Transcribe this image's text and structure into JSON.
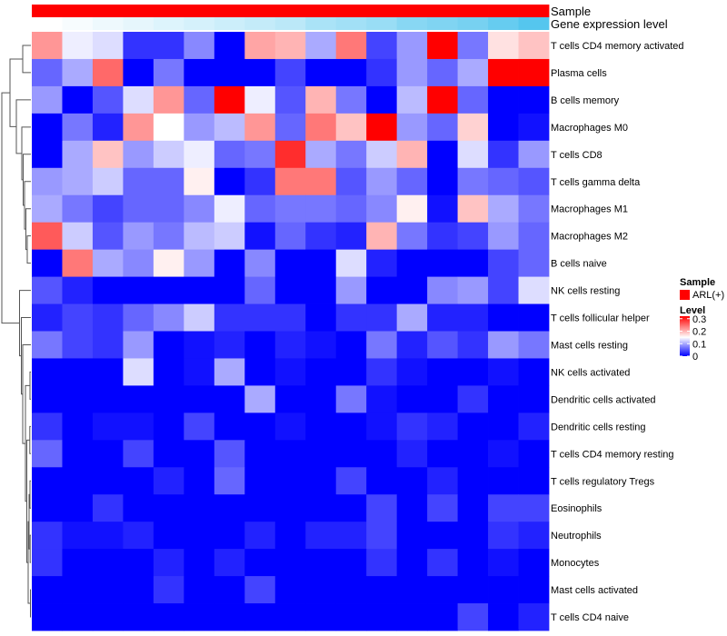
{
  "chart_data": {
    "type": "heatmap",
    "annotations": [
      {
        "name": "Sample",
        "legend_title": "Sample",
        "levels": [
          "ARL(+)"
        ],
        "colors": [
          "#ff0000"
        ]
      },
      {
        "name": "Gene expression level",
        "shown_in_legend": false,
        "gradient": [
          "#ffffff",
          "#55c6ee"
        ]
      }
    ],
    "gene_expression_level": [
      0.0,
      0.05,
      0.1,
      0.15,
      0.2,
      0.25,
      0.3,
      0.35,
      0.4,
      0.5,
      0.55,
      0.6,
      0.7,
      0.75,
      0.8,
      0.9,
      1.0
    ],
    "rows": [
      "T cells CD4 memory activated",
      "Plasma cells",
      "B cells memory",
      "Macrophages M0",
      "T cells CD8",
      "T cells gamma delta",
      "Macrophages M1",
      "Macrophages M2",
      "B cells naive",
      "NK cells resting",
      "T cells follicular helper",
      "Mast cells resting",
      "NK cells activated",
      "Dendritic cells activated",
      "Dendritic cells resting",
      "T cells CD4 memory resting",
      "T cells regulatory  Tregs",
      "Eosinophils",
      "Neutrophils",
      "Monocytes",
      "Mast cells activated",
      "T cells CD4 naive"
    ],
    "values": [
      [
        0.22,
        0.14,
        0.13,
        0.03,
        0.03,
        0.08,
        0.0,
        0.21,
        0.2,
        0.1,
        0.24,
        0.04,
        0.09,
        0.32,
        0.07,
        0.17,
        0.19
      ],
      [
        0.06,
        0.1,
        0.25,
        0.0,
        0.07,
        0.0,
        0.0,
        0.0,
        0.04,
        0.0,
        0.0,
        0.03,
        0.09,
        0.06,
        0.1,
        0.32,
        0.33
      ],
      [
        0.09,
        0.0,
        0.05,
        0.13,
        0.22,
        0.06,
        0.32,
        0.14,
        0.05,
        0.2,
        0.07,
        0.0,
        0.11,
        0.32,
        0.06,
        0.0,
        0.0
      ],
      [
        0.0,
        0.07,
        0.02,
        0.22,
        0.15,
        0.09,
        0.11,
        0.22,
        0.06,
        0.24,
        0.19,
        0.32,
        0.09,
        0.06,
        0.18,
        0.0,
        0.01
      ],
      [
        0.0,
        0.1,
        0.19,
        0.09,
        0.12,
        0.14,
        0.06,
        0.07,
        0.29,
        0.1,
        0.07,
        0.12,
        0.2,
        0.0,
        0.13,
        0.03,
        0.09
      ],
      [
        0.09,
        0.1,
        0.12,
        0.06,
        0.06,
        0.16,
        0.0,
        0.03,
        0.24,
        0.24,
        0.05,
        0.09,
        0.06,
        0.0,
        0.07,
        0.06,
        0.05
      ],
      [
        0.1,
        0.07,
        0.04,
        0.06,
        0.06,
        0.08,
        0.14,
        0.06,
        0.07,
        0.07,
        0.06,
        0.08,
        0.16,
        0.01,
        0.19,
        0.1,
        0.07
      ],
      [
        0.26,
        0.12,
        0.05,
        0.09,
        0.07,
        0.11,
        0.12,
        0.01,
        0.06,
        0.03,
        0.02,
        0.2,
        0.07,
        0.03,
        0.04,
        0.09,
        0.06
      ],
      [
        0.0,
        0.24,
        0.1,
        0.08,
        0.16,
        0.09,
        0.0,
        0.08,
        0.0,
        0.0,
        0.13,
        0.02,
        0.0,
        0.0,
        0.0,
        0.04,
        0.06
      ],
      [
        0.05,
        0.02,
        0.0,
        0.0,
        0.0,
        0.0,
        0.0,
        0.06,
        0.0,
        0.0,
        0.09,
        0.0,
        0.0,
        0.08,
        0.09,
        0.04,
        0.13
      ],
      [
        0.02,
        0.04,
        0.03,
        0.06,
        0.08,
        0.12,
        0.03,
        0.03,
        0.03,
        0.0,
        0.03,
        0.03,
        0.1,
        0.02,
        0.02,
        0.0,
        0.0
      ],
      [
        0.07,
        0.04,
        0.03,
        0.09,
        0.0,
        0.01,
        0.02,
        0.0,
        0.02,
        0.01,
        0.0,
        0.07,
        0.02,
        0.05,
        0.03,
        0.09,
        0.07
      ],
      [
        0.0,
        0.0,
        0.0,
        0.13,
        0.0,
        0.01,
        0.1,
        0.0,
        0.01,
        0.0,
        0.0,
        0.03,
        0.01,
        0.0,
        0.0,
        0.01,
        0.0
      ],
      [
        0.0,
        0.0,
        0.0,
        0.0,
        0.0,
        0.0,
        0.0,
        0.1,
        0.0,
        0.0,
        0.07,
        0.01,
        0.0,
        0.0,
        0.03,
        0.0,
        0.0
      ],
      [
        0.03,
        0.0,
        0.01,
        0.01,
        0.0,
        0.04,
        0.0,
        0.0,
        0.01,
        0.0,
        0.0,
        0.01,
        0.03,
        0.02,
        0.0,
        0.0,
        0.02
      ],
      [
        0.06,
        0.0,
        0.0,
        0.04,
        0.0,
        0.0,
        0.05,
        0.0,
        0.0,
        0.0,
        0.0,
        0.0,
        0.02,
        0.0,
        0.0,
        0.01,
        0.0
      ],
      [
        0.0,
        0.0,
        0.0,
        0.0,
        0.02,
        0.0,
        0.06,
        0.0,
        0.0,
        0.0,
        0.04,
        0.0,
        0.0,
        0.02,
        0.0,
        0.0,
        0.0
      ],
      [
        0.0,
        0.0,
        0.03,
        0.0,
        0.0,
        0.0,
        0.0,
        0.0,
        0.0,
        0.0,
        0.0,
        0.04,
        0.0,
        0.04,
        0.0,
        0.04,
        0.04
      ],
      [
        0.03,
        0.01,
        0.01,
        0.02,
        0.0,
        0.0,
        0.0,
        0.02,
        0.0,
        0.02,
        0.02,
        0.04,
        0.0,
        0.0,
        0.0,
        0.03,
        0.02
      ],
      [
        0.03,
        0.0,
        0.0,
        0.0,
        0.02,
        0.0,
        0.02,
        0.0,
        0.0,
        0.0,
        0.0,
        0.03,
        0.0,
        0.03,
        0.0,
        0.01,
        0.0
      ],
      [
        0.0,
        0.0,
        0.0,
        0.0,
        0.03,
        0.0,
        0.0,
        0.04,
        0.0,
        0.0,
        0.0,
        0.0,
        0.0,
        0.0,
        0.0,
        0.0,
        0.0
      ],
      [
        0.0,
        0.0,
        0.0,
        0.0,
        0.0,
        0.0,
        0.0,
        0.0,
        0.0,
        0.0,
        0.0,
        0.0,
        0.0,
        0.0,
        0.04,
        0.0,
        0.02
      ]
    ],
    "color_scale": {
      "min": 0,
      "mid": 0.15,
      "max": 0.32,
      "low": "#0000ff",
      "midc": "#ffffff",
      "high": "#ff0000"
    },
    "legend": {
      "title": "Level",
      "ticks": [
        0.3,
        0.2,
        0.1,
        0
      ],
      "tick_labels": [
        "0.3",
        "0.2",
        "0.1",
        "0"
      ],
      "placement": "right"
    },
    "dendrogram": {
      "leaves": [
        0,
        1,
        2,
        3,
        4,
        5,
        6,
        7,
        8,
        9,
        10,
        11,
        12,
        13,
        14,
        15,
        16,
        17,
        18,
        19,
        20,
        21
      ],
      "merges": [
        [
          7,
          8,
          0.4
        ],
        [
          6,
          101,
          0.55
        ],
        [
          5,
          102,
          0.7
        ],
        [
          4,
          103,
          0.85
        ],
        [
          3,
          104,
          1.0
        ],
        [
          2,
          105,
          1.6
        ],
        [
          0,
          1,
          0.9
        ],
        [
          107,
          106,
          2.3
        ],
        [
          12,
          13,
          0.1
        ],
        [
          14,
          15,
          0.12
        ],
        [
          16,
          17,
          0.1
        ],
        [
          18,
          19,
          0.08
        ],
        [
          20,
          21,
          0.05
        ],
        [
          111,
          112,
          0.2
        ],
        [
          113,
          114,
          0.3
        ],
        [
          110,
          115,
          0.45
        ],
        [
          109,
          116,
          0.6
        ],
        [
          11,
          117,
          0.9
        ],
        [
          10,
          118,
          1.05
        ],
        [
          9,
          119,
          1.25
        ],
        [
          108,
          120,
          3.2
        ]
      ],
      "max_height": 3.2
    }
  }
}
